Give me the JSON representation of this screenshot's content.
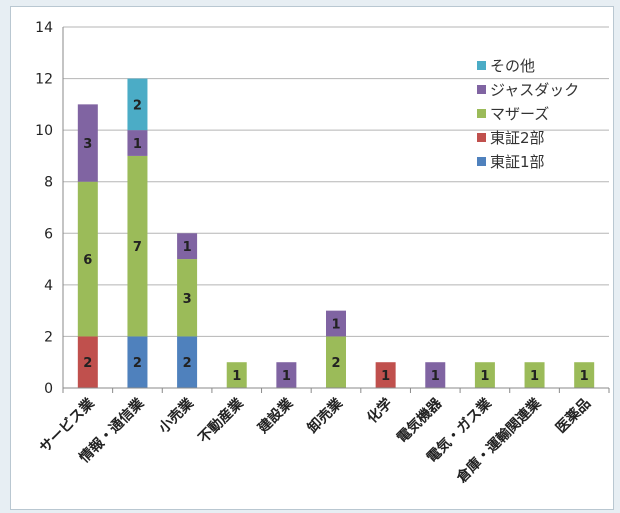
{
  "chart_data": {
    "type": "bar",
    "stacked": true,
    "categories": [
      "サービス業",
      "情報・通信業",
      "小売業",
      "不動産業",
      "建設業",
      "卸売業",
      "化学",
      "電気機器",
      "電気・ガス業",
      "倉庫・運輸関連業",
      "医薬品"
    ],
    "series": [
      {
        "name": "東証1部",
        "color": "#4f81bd",
        "values": [
          0,
          2,
          2,
          0,
          0,
          0,
          0,
          0,
          0,
          0,
          0
        ]
      },
      {
        "name": "東証2部",
        "color": "#c0504d",
        "values": [
          2,
          0,
          0,
          0,
          0,
          0,
          1,
          0,
          0,
          0,
          0
        ]
      },
      {
        "name": "マザーズ",
        "color": "#9bbb59",
        "values": [
          6,
          7,
          3,
          1,
          0,
          2,
          0,
          0,
          1,
          1,
          1
        ]
      },
      {
        "name": "ジャスダック",
        "color": "#8064a2",
        "values": [
          3,
          1,
          1,
          0,
          1,
          1,
          0,
          1,
          0,
          0,
          0
        ]
      },
      {
        "name": "その他",
        "color": "#4bacc6",
        "values": [
          0,
          2,
          0,
          0,
          0,
          0,
          0,
          0,
          0,
          0,
          0
        ]
      }
    ],
    "yticks": [
      "0",
      "2",
      "4",
      "6",
      "8",
      "10",
      "12",
      "14"
    ],
    "ylim": [
      0,
      14
    ],
    "grid": true,
    "legend_position": "top-right"
  }
}
